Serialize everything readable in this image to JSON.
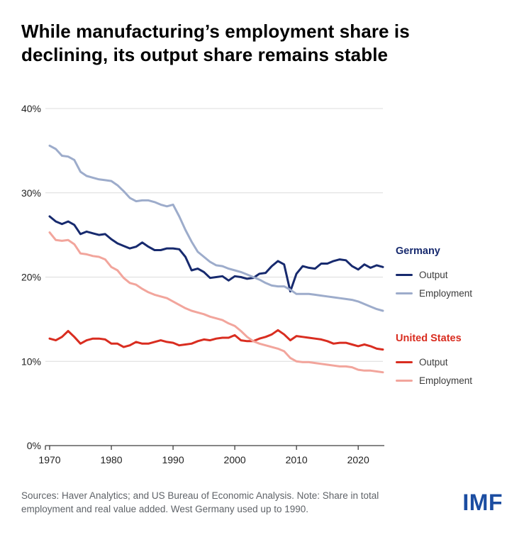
{
  "chart_data": {
    "type": "line",
    "title": "While manufacturing’s employment share is declining, its output share remains stable",
    "xlabel": "",
    "ylabel": "",
    "ylim": [
      0,
      40
    ],
    "yticks": [
      0,
      10,
      20,
      30,
      40
    ],
    "ytick_labels": [
      "0%",
      "10%",
      "20%",
      "30%",
      "40%"
    ],
    "xticks": [
      1970,
      1980,
      1990,
      2000,
      2010,
      2020
    ],
    "grid": "horizontal",
    "legend_position": "right",
    "x": [
      1970,
      1971,
      1972,
      1973,
      1974,
      1975,
      1976,
      1977,
      1978,
      1979,
      1980,
      1981,
      1982,
      1983,
      1984,
      1985,
      1986,
      1987,
      1988,
      1989,
      1990,
      1991,
      1992,
      1993,
      1994,
      1995,
      1996,
      1997,
      1998,
      1999,
      2000,
      2001,
      2002,
      2003,
      2004,
      2005,
      2006,
      2007,
      2008,
      2009,
      2010,
      2011,
      2012,
      2013,
      2014,
      2015,
      2016,
      2017,
      2018,
      2019,
      2020,
      2021,
      2022,
      2023,
      2024
    ],
    "series": [
      {
        "name": "Germany Output",
        "color": "#172a6e",
        "values": [
          27.2,
          26.6,
          26.3,
          26.6,
          26.2,
          25.1,
          25.4,
          25.2,
          25.0,
          25.1,
          24.5,
          24.0,
          23.7,
          23.4,
          23.6,
          24.1,
          23.6,
          23.2,
          23.2,
          23.4,
          23.4,
          23.3,
          22.4,
          20.8,
          21.0,
          20.6,
          19.9,
          20.0,
          20.1,
          19.6,
          20.1,
          20.0,
          19.8,
          19.9,
          20.4,
          20.5,
          21.3,
          21.9,
          21.5,
          18.3,
          20.4,
          21.3,
          21.1,
          21.0,
          21.6,
          21.6,
          21.9,
          22.1,
          22.0,
          21.3,
          20.9,
          21.5,
          21.1,
          21.4,
          21.2
        ]
      },
      {
        "name": "Germany Employment",
        "color": "#9daccb",
        "values": [
          35.6,
          35.2,
          34.4,
          34.3,
          33.9,
          32.5,
          32.0,
          31.8,
          31.6,
          31.5,
          31.4,
          30.9,
          30.2,
          29.4,
          29.0,
          29.1,
          29.1,
          28.9,
          28.6,
          28.4,
          28.6,
          27.2,
          25.6,
          24.2,
          23.0,
          22.4,
          21.8,
          21.4,
          21.3,
          21.0,
          20.8,
          20.6,
          20.3,
          20.0,
          19.7,
          19.3,
          19.0,
          18.9,
          18.9,
          18.5,
          18.0,
          18.0,
          18.0,
          17.9,
          17.8,
          17.7,
          17.6,
          17.5,
          17.4,
          17.3,
          17.1,
          16.8,
          16.5,
          16.2,
          16.0
        ]
      },
      {
        "name": "United States Output",
        "color": "#d92d20",
        "values": [
          12.7,
          12.5,
          12.9,
          13.6,
          12.9,
          12.1,
          12.5,
          12.7,
          12.7,
          12.6,
          12.1,
          12.1,
          11.7,
          11.9,
          12.3,
          12.1,
          12.1,
          12.3,
          12.5,
          12.3,
          12.2,
          11.9,
          12.0,
          12.1,
          12.4,
          12.6,
          12.5,
          12.7,
          12.8,
          12.8,
          13.1,
          12.5,
          12.4,
          12.4,
          12.7,
          12.9,
          13.2,
          13.7,
          13.2,
          12.5,
          13.0,
          12.9,
          12.8,
          12.7,
          12.6,
          12.4,
          12.1,
          12.2,
          12.2,
          12.0,
          11.8,
          12.0,
          11.8,
          11.5,
          11.4
        ]
      },
      {
        "name": "United States Employment",
        "color": "#f2a59c",
        "values": [
          25.3,
          24.4,
          24.3,
          24.4,
          23.9,
          22.8,
          22.7,
          22.5,
          22.4,
          22.1,
          21.2,
          20.8,
          19.9,
          19.3,
          19.1,
          18.6,
          18.2,
          17.9,
          17.7,
          17.5,
          17.1,
          16.7,
          16.3,
          16.0,
          15.8,
          15.6,
          15.3,
          15.1,
          14.9,
          14.5,
          14.2,
          13.6,
          12.9,
          12.4,
          12.1,
          11.9,
          11.7,
          11.5,
          11.2,
          10.4,
          10.0,
          9.9,
          9.9,
          9.8,
          9.7,
          9.6,
          9.5,
          9.4,
          9.4,
          9.3,
          9.0,
          8.9,
          8.9,
          8.8,
          8.7
        ]
      }
    ]
  },
  "legend": {
    "groups": [
      {
        "title": "Germany",
        "color": "#172a6e",
        "items": [
          {
            "label": "Output",
            "color": "#172a6e"
          },
          {
            "label": "Employment",
            "color": "#9daccb"
          }
        ]
      },
      {
        "title": "United States",
        "color": "#d92d20",
        "items": [
          {
            "label": "Output",
            "color": "#d92d20"
          },
          {
            "label": "Employment",
            "color": "#f2a59c"
          }
        ]
      }
    ]
  },
  "footer": {
    "sources": "Sources: Haver Analytics; and US Bureau of Economic Analysis. Note: Share in total employment and real value added. West Germany used up to 1990.",
    "logo": "IMF",
    "logo_color": "#1b4da1"
  },
  "theme": {
    "background": "#ffffff",
    "grid": "#dcdcdc",
    "axis": "#3f3f3f",
    "tick_text": "#1f1f1f"
  }
}
